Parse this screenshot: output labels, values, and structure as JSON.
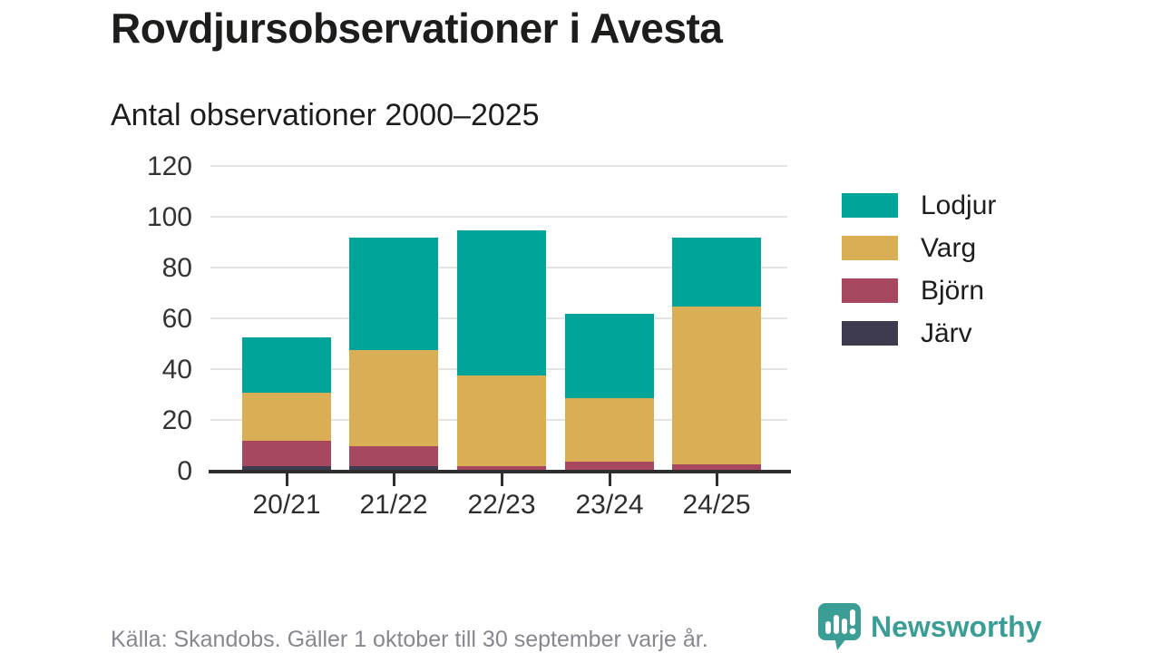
{
  "header": {
    "title": "Rovdjursobservationer i Avesta",
    "subtitle": "Antal observationer 2000–2025"
  },
  "footer": {
    "source": "Källa: Skandobs. Gäller 1 oktober till 30 september varje år."
  },
  "branding": {
    "name": "Newsworthy",
    "icon": "bar-chart-speech-bubble-icon",
    "color": "#3b9e96"
  },
  "colors": {
    "lodjur": "#00a499",
    "varg": "#d9ae55",
    "bjorn": "#a84760",
    "jarv": "#3d3b4d",
    "grid": "#e4e4e4",
    "axis": "#2f2f2f",
    "tick_text": "#333333"
  },
  "chart_data": {
    "type": "bar",
    "stacked": true,
    "title": "Rovdjursobservationer i Avesta",
    "subtitle": "Antal observationer 2000–2025",
    "xlabel": "",
    "ylabel": "",
    "categories": [
      "20/21",
      "21/22",
      "22/23",
      "23/24",
      "24/25"
    ],
    "series": [
      {
        "name": "Lodjur",
        "color": "#00a499",
        "values": [
          22,
          44,
          57,
          33,
          27
        ]
      },
      {
        "name": "Varg",
        "color": "#d9ae55",
        "values": [
          19,
          38,
          36,
          25,
          62
        ]
      },
      {
        "name": "Björn",
        "color": "#a84760",
        "values": [
          10,
          8,
          2,
          4,
          3
        ]
      },
      {
        "name": "Järv",
        "color": "#3d3b4d",
        "values": [
          2,
          2,
          0,
          0,
          0
        ]
      }
    ],
    "totals": [
      53,
      92,
      95,
      62,
      92
    ],
    "ylim": [
      0,
      120
    ],
    "yticks": [
      0,
      20,
      40,
      60,
      80,
      100,
      120
    ],
    "grid": true,
    "legend_position": "right",
    "legend_order": [
      "Lodjur",
      "Varg",
      "Björn",
      "Järv"
    ]
  }
}
